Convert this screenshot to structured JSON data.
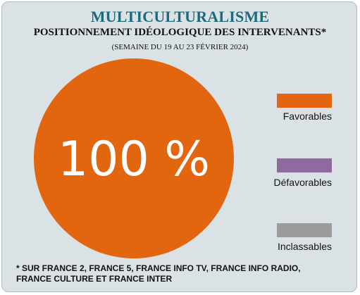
{
  "title": "MULTICULTURALISME",
  "subtitle": "POSITIONNEMENT IDÉOLOGIQUE DES INTERVENANTS*",
  "period": "(SEMAINE DU 19 AU 23 FÉVRIER 2024)",
  "footnote_line1": "* SUR FRANCE 2, FRANCE 5, FRANCE INFO TV, FRANCE INFO RADIO,",
  "footnote_line2": "FRANCE CULTURE ET FRANCE INTER",
  "chart_data": {
    "type": "pie",
    "title": "MULTICULTURALISME",
    "subtitle": "POSITIONNEMENT IDÉOLOGIQUE DES INTERVENANTS*",
    "slices": [
      {
        "label": "Favorables",
        "value": 100,
        "color": "#e2650f"
      },
      {
        "label": "Défavorables",
        "value": 0,
        "color": "#8f6a9e"
      },
      {
        "label": "Inclassables",
        "value": 0,
        "color": "#9c9c9c"
      }
    ],
    "data_label": "100 %",
    "legend_position": "right"
  }
}
